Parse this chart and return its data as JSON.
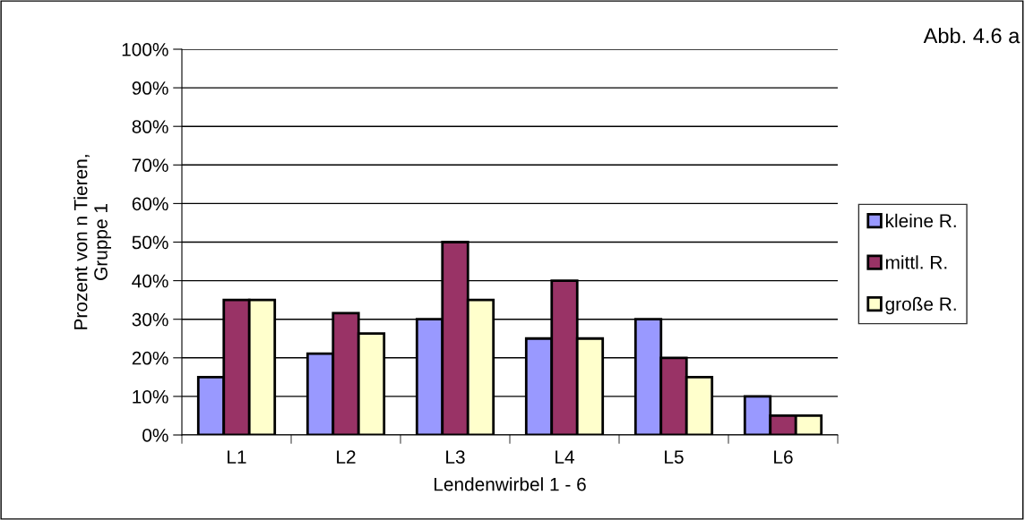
{
  "chart_data": {
    "type": "bar",
    "annotations": [
      "Abb. 4.6 a"
    ],
    "xlabel": "Lendenwirbel 1 - 6",
    "ylabel": "Prozent von n Tieren,\nGruppe 1",
    "categories": [
      "L1",
      "L2",
      "L3",
      "L4",
      "L5",
      "L6"
    ],
    "series": [
      {
        "name": "kleine R.",
        "color": "#9999ff",
        "values": [
          15,
          21.1,
          30,
          25,
          30,
          10
        ]
      },
      {
        "name": "mittl. R.",
        "color": "#993366",
        "values": [
          35,
          31.6,
          50,
          40,
          20,
          5
        ]
      },
      {
        "name": "große R.",
        "color": "#ffffcc",
        "values": [
          35,
          26.3,
          35,
          25,
          15,
          5
        ]
      }
    ],
    "ylim": [
      0,
      100
    ],
    "yticks": [
      {
        "value": 0,
        "label": "0%"
      },
      {
        "value": 10,
        "label": "10%"
      },
      {
        "value": 20,
        "label": "20%"
      },
      {
        "value": 30,
        "label": "30%"
      },
      {
        "value": 40,
        "label": "40%"
      },
      {
        "value": 50,
        "label": "50%"
      },
      {
        "value": 60,
        "label": "60%"
      },
      {
        "value": 70,
        "label": "70%"
      },
      {
        "value": 80,
        "label": "80%"
      },
      {
        "value": 90,
        "label": "90%"
      },
      {
        "value": 100,
        "label": "100%"
      }
    ],
    "grid": "y",
    "legend": "right"
  }
}
